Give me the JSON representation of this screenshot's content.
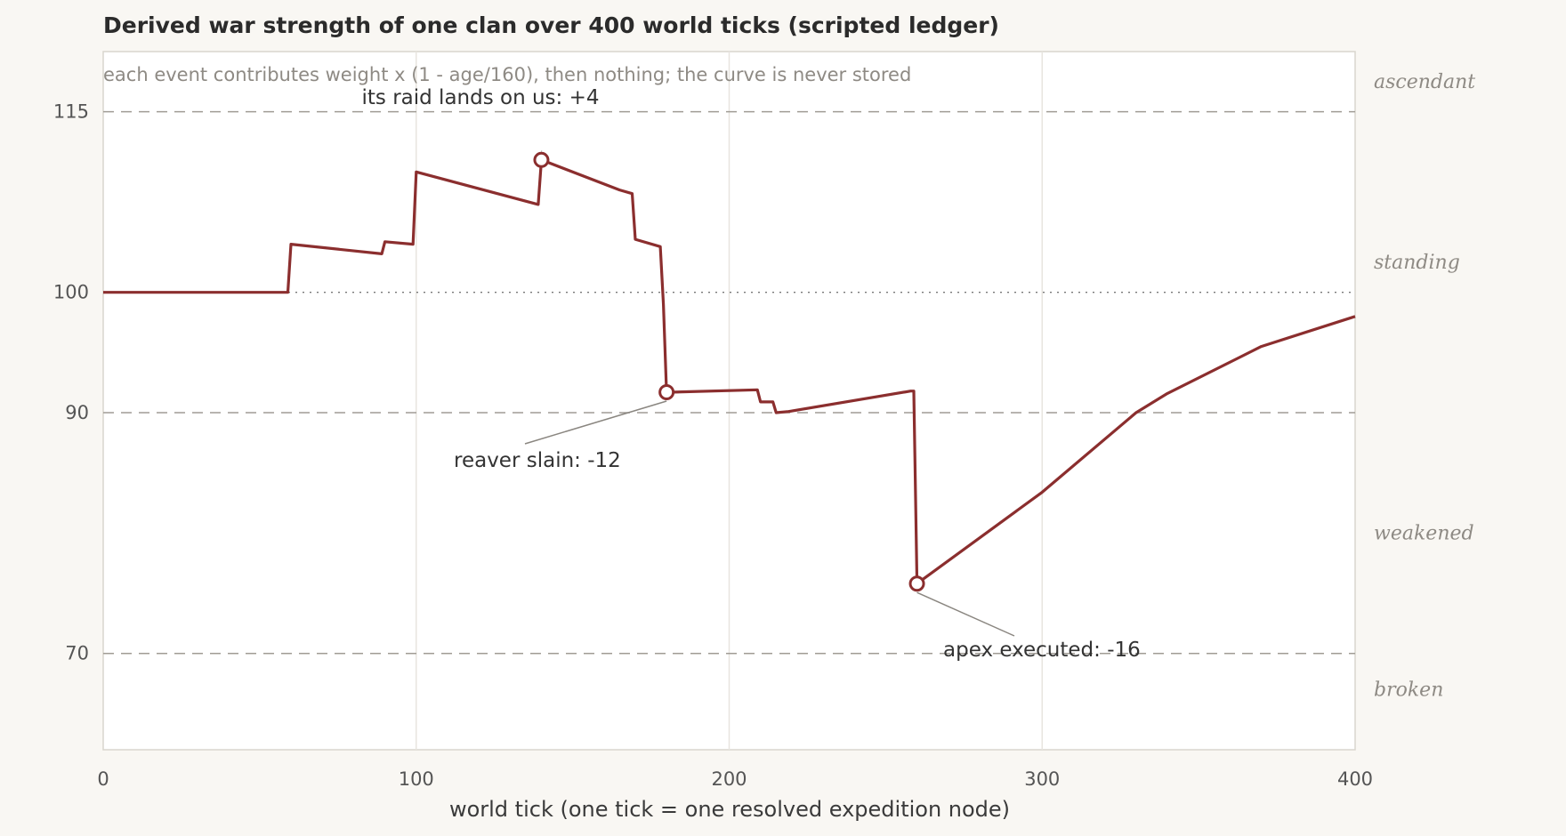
{
  "chart_data": {
    "type": "line",
    "title": "Derived war strength of one clan over 400 world ticks (scripted ledger)",
    "subtitle": "each event contributes weight x (1 - age/160), then nothing; the curve is never stored",
    "xlabel": "world tick (one tick = one resolved expedition node)",
    "ylabel": "",
    "xlim": [
      0,
      400
    ],
    "ylim": [
      62,
      120
    ],
    "xticks": [
      0,
      100,
      200,
      300,
      400
    ],
    "yticks": [
      70,
      90,
      100,
      115
    ],
    "dashed_reference_lines": [
      70,
      90,
      115
    ],
    "baseline": 100,
    "vertical_grid": [
      100,
      200,
      300
    ],
    "series": [
      {
        "color": "#8b2e2e",
        "points": [
          [
            0,
            100
          ],
          [
            59,
            100
          ],
          [
            60,
            104
          ],
          [
            89,
            103.2
          ],
          [
            90,
            104.2
          ],
          [
            99,
            104
          ],
          [
            100,
            110
          ],
          [
            139,
            107.3
          ],
          [
            140,
            111
          ],
          [
            165,
            108.5
          ],
          [
            169,
            108.2
          ],
          [
            170,
            104.4
          ],
          [
            178,
            103.8
          ],
          [
            179,
            99
          ],
          [
            180,
            91.7
          ],
          [
            181,
            91.7
          ],
          [
            209,
            91.9
          ],
          [
            210,
            90.9
          ],
          [
            214,
            90.9
          ],
          [
            215,
            90
          ],
          [
            219,
            90.1
          ],
          [
            258,
            91.8
          ],
          [
            259,
            91.8
          ],
          [
            260,
            75.8
          ],
          [
            300,
            83.4
          ],
          [
            330,
            90
          ],
          [
            340,
            91.6
          ],
          [
            370,
            95.5
          ],
          [
            400,
            98
          ]
        ]
      }
    ],
    "band_labels": [
      {
        "text": "ascendant",
        "y": 117.5
      },
      {
        "text": "standing",
        "y": 102.5
      },
      {
        "text": "weakened",
        "y": 80
      },
      {
        "text": "broken",
        "y": 67
      }
    ],
    "annotations": [
      {
        "text": "its raid lands on us: +4",
        "point": [
          140,
          111
        ]
      },
      {
        "text": "reaver slain: -12",
        "point": [
          180,
          91.7
        ]
      },
      {
        "text": "apex executed: -16",
        "point": [
          260,
          75.8
        ]
      }
    ]
  },
  "colors": {
    "line": "#8b2e2e",
    "plot_bg": "#ffffff",
    "page_bg": "#f9f7f3",
    "dashed": "#a09c95",
    "grid": "#e8e5df"
  }
}
